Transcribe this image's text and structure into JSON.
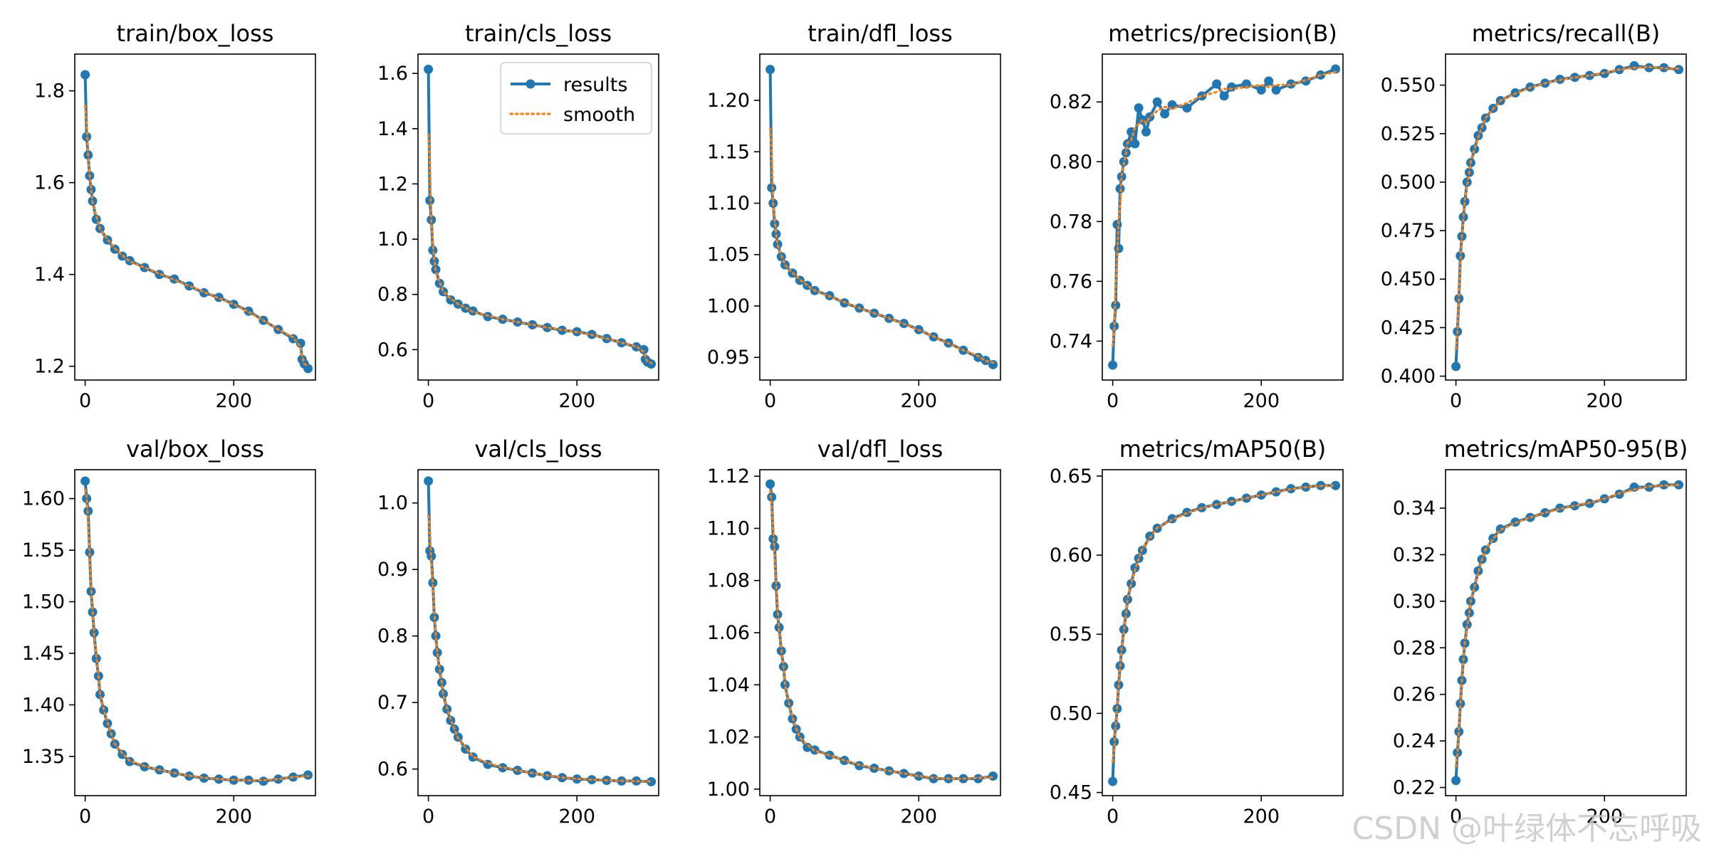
{
  "watermark": "CSDN @叶绿体不忘呼吸",
  "colors": {
    "results": "#1f77b4",
    "smooth": "#ff7f0e",
    "axes": "#000000",
    "background": "#ffffff"
  },
  "chart_data": [
    {
      "type": "line",
      "title": "train/box_loss",
      "grid": false,
      "xlim": [
        -14,
        310
      ],
      "ylim": [
        1.17,
        1.88
      ],
      "xticks": [
        0,
        200
      ],
      "xtick_labels": [
        "0",
        "200"
      ],
      "yticks": [
        1.2,
        1.4,
        1.6,
        1.8
      ],
      "ytick_labels": [
        "1.2",
        "1.4",
        "1.6",
        "1.8"
      ],
      "series": [
        {
          "name": "results",
          "x": [
            0,
            2,
            4,
            6,
            8,
            10,
            15,
            20,
            30,
            40,
            50,
            60,
            80,
            100,
            120,
            140,
            160,
            180,
            200,
            220,
            240,
            260,
            280,
            290,
            292,
            295,
            300
          ],
          "y": [
            1.835,
            1.7,
            1.66,
            1.615,
            1.585,
            1.56,
            1.52,
            1.5,
            1.475,
            1.455,
            1.44,
            1.43,
            1.415,
            1.4,
            1.39,
            1.375,
            1.36,
            1.35,
            1.335,
            1.32,
            1.3,
            1.28,
            1.26,
            1.25,
            1.215,
            1.205,
            1.195
          ]
        }
      ],
      "legend": false
    },
    {
      "type": "line",
      "title": "train/cls_loss",
      "grid": false,
      "xlim": [
        -14,
        310
      ],
      "ylim": [
        0.49,
        1.67
      ],
      "xticks": [
        0,
        200
      ],
      "xtick_labels": [
        "0",
        "200"
      ],
      "yticks": [
        0.6,
        0.8,
        1.0,
        1.2,
        1.4,
        1.6
      ],
      "ytick_labels": [
        "0.6",
        "0.8",
        "1.0",
        "1.2",
        "1.4",
        "1.6"
      ],
      "series": [
        {
          "name": "results",
          "x": [
            0,
            2,
            4,
            6,
            8,
            10,
            15,
            20,
            30,
            40,
            50,
            60,
            80,
            100,
            120,
            140,
            160,
            180,
            200,
            220,
            240,
            260,
            280,
            290,
            292,
            295,
            300
          ],
          "y": [
            1.615,
            1.14,
            1.07,
            0.96,
            0.92,
            0.89,
            0.84,
            0.81,
            0.78,
            0.765,
            0.75,
            0.74,
            0.72,
            0.71,
            0.7,
            0.69,
            0.68,
            0.67,
            0.665,
            0.655,
            0.64,
            0.625,
            0.61,
            0.6,
            0.565,
            0.555,
            0.548
          ]
        }
      ],
      "legend": true,
      "legend_position": "top-right",
      "legend_entries": [
        "results",
        "smooth"
      ]
    },
    {
      "type": "line",
      "title": "train/dfl_loss",
      "grid": false,
      "xlim": [
        -14,
        310
      ],
      "ylim": [
        0.928,
        1.245
      ],
      "xticks": [
        0,
        200
      ],
      "xtick_labels": [
        "0",
        "200"
      ],
      "yticks": [
        0.95,
        1.0,
        1.05,
        1.1,
        1.15,
        1.2
      ],
      "ytick_labels": [
        "0.95",
        "1.00",
        "1.05",
        "1.10",
        "1.15",
        "1.20"
      ],
      "series": [
        {
          "name": "results",
          "x": [
            0,
            2,
            4,
            6,
            8,
            10,
            15,
            20,
            30,
            40,
            50,
            60,
            80,
            100,
            120,
            140,
            160,
            180,
            200,
            220,
            240,
            260,
            280,
            290,
            300
          ],
          "y": [
            1.23,
            1.115,
            1.1,
            1.08,
            1.07,
            1.06,
            1.048,
            1.04,
            1.032,
            1.025,
            1.02,
            1.015,
            1.01,
            1.003,
            0.998,
            0.993,
            0.988,
            0.983,
            0.977,
            0.97,
            0.964,
            0.957,
            0.95,
            0.947,
            0.943
          ]
        }
      ],
      "legend": false
    },
    {
      "type": "line",
      "title": "metrics/precision(B)",
      "grid": false,
      "xlim": [
        -14,
        310
      ],
      "ylim": [
        0.727,
        0.836
      ],
      "xticks": [
        0,
        200
      ],
      "xtick_labels": [
        "0",
        "200"
      ],
      "yticks": [
        0.74,
        0.76,
        0.78,
        0.8,
        0.82
      ],
      "ytick_labels": [
        "0.74",
        "0.76",
        "0.78",
        "0.80",
        "0.82"
      ],
      "series": [
        {
          "name": "results",
          "x": [
            0,
            2,
            4,
            6,
            8,
            10,
            12,
            15,
            18,
            20,
            25,
            30,
            35,
            40,
            45,
            50,
            60,
            70,
            80,
            100,
            120,
            140,
            150,
            160,
            180,
            200,
            210,
            220,
            240,
            260,
            280,
            300
          ],
          "y": [
            0.732,
            0.745,
            0.752,
            0.779,
            0.771,
            0.791,
            0.795,
            0.8,
            0.803,
            0.806,
            0.81,
            0.806,
            0.818,
            0.814,
            0.81,
            0.815,
            0.82,
            0.816,
            0.819,
            0.818,
            0.822,
            0.826,
            0.822,
            0.825,
            0.826,
            0.824,
            0.827,
            0.824,
            0.826,
            0.827,
            0.829,
            0.831
          ]
        }
      ],
      "legend": false
    },
    {
      "type": "line",
      "title": "metrics/recall(B)",
      "grid": false,
      "xlim": [
        -14,
        310
      ],
      "ylim": [
        0.398,
        0.566
      ],
      "xticks": [
        0,
        200
      ],
      "xtick_labels": [
        "0",
        "200"
      ],
      "yticks": [
        0.4,
        0.425,
        0.45,
        0.475,
        0.5,
        0.525,
        0.55
      ],
      "ytick_labels": [
        "0.400",
        "0.425",
        "0.450",
        "0.475",
        "0.500",
        "0.525",
        "0.550"
      ],
      "series": [
        {
          "name": "results",
          "x": [
            0,
            2,
            4,
            6,
            8,
            10,
            12,
            15,
            18,
            20,
            25,
            30,
            35,
            40,
            50,
            60,
            80,
            100,
            120,
            140,
            160,
            180,
            200,
            220,
            240,
            260,
            280,
            300
          ],
          "y": [
            0.405,
            0.423,
            0.44,
            0.462,
            0.472,
            0.482,
            0.49,
            0.5,
            0.505,
            0.51,
            0.517,
            0.524,
            0.528,
            0.533,
            0.538,
            0.542,
            0.546,
            0.549,
            0.551,
            0.553,
            0.554,
            0.555,
            0.556,
            0.558,
            0.56,
            0.559,
            0.559,
            0.558
          ]
        }
      ],
      "legend": false
    },
    {
      "type": "line",
      "title": "val/box_loss",
      "grid": false,
      "xlim": [
        -14,
        310
      ],
      "ylim": [
        1.312,
        1.628
      ],
      "xticks": [
        0,
        200
      ],
      "xtick_labels": [
        "0",
        "200"
      ],
      "yticks": [
        1.35,
        1.4,
        1.45,
        1.5,
        1.55,
        1.6
      ],
      "ytick_labels": [
        "1.35",
        "1.40",
        "1.45",
        "1.50",
        "1.55",
        "1.60"
      ],
      "series": [
        {
          "name": "results",
          "x": [
            0,
            2,
            4,
            6,
            8,
            10,
            12,
            15,
            18,
            20,
            25,
            30,
            35,
            40,
            50,
            60,
            80,
            100,
            120,
            140,
            160,
            180,
            200,
            220,
            240,
            260,
            280,
            300
          ],
          "y": [
            1.617,
            1.6,
            1.588,
            1.548,
            1.51,
            1.49,
            1.47,
            1.445,
            1.428,
            1.41,
            1.395,
            1.382,
            1.372,
            1.362,
            1.352,
            1.345,
            1.34,
            1.337,
            1.334,
            1.331,
            1.329,
            1.328,
            1.327,
            1.327,
            1.326,
            1.328,
            1.33,
            1.332
          ]
        }
      ],
      "legend": false
    },
    {
      "type": "line",
      "title": "val/cls_loss",
      "grid": false,
      "xlim": [
        -14,
        310
      ],
      "ylim": [
        0.56,
        1.05
      ],
      "xticks": [
        0,
        200
      ],
      "xtick_labels": [
        "0",
        "200"
      ],
      "yticks": [
        0.6,
        0.7,
        0.8,
        0.9,
        1.0
      ],
      "ytick_labels": [
        "0.6",
        "0.7",
        "0.8",
        "0.9",
        "1.0"
      ],
      "series": [
        {
          "name": "results",
          "x": [
            0,
            2,
            4,
            6,
            8,
            10,
            12,
            15,
            18,
            20,
            25,
            30,
            35,
            40,
            50,
            60,
            80,
            100,
            120,
            140,
            160,
            180,
            200,
            220,
            240,
            260,
            280,
            300
          ],
          "y": [
            1.033,
            0.928,
            0.92,
            0.88,
            0.828,
            0.8,
            0.775,
            0.75,
            0.73,
            0.713,
            0.69,
            0.673,
            0.66,
            0.648,
            0.63,
            0.618,
            0.607,
            0.602,
            0.598,
            0.594,
            0.59,
            0.587,
            0.585,
            0.584,
            0.583,
            0.582,
            0.582,
            0.581
          ]
        }
      ],
      "legend": false
    },
    {
      "type": "line",
      "title": "val/dfl_loss",
      "grid": false,
      "xlim": [
        -14,
        310
      ],
      "ylim": [
        0.9975,
        1.1225
      ],
      "xticks": [
        0,
        200
      ],
      "xtick_labels": [
        "0",
        "200"
      ],
      "yticks": [
        1.0,
        1.02,
        1.04,
        1.06,
        1.08,
        1.1,
        1.12
      ],
      "ytick_labels": [
        "1.00",
        "1.02",
        "1.04",
        "1.06",
        "1.08",
        "1.10",
        "1.12"
      ],
      "series": [
        {
          "name": "results",
          "x": [
            0,
            2,
            4,
            6,
            8,
            10,
            12,
            15,
            18,
            20,
            25,
            30,
            35,
            40,
            50,
            60,
            80,
            100,
            120,
            140,
            160,
            180,
            200,
            220,
            240,
            260,
            280,
            300
          ],
          "y": [
            1.117,
            1.112,
            1.096,
            1.093,
            1.078,
            1.067,
            1.062,
            1.053,
            1.047,
            1.04,
            1.033,
            1.027,
            1.023,
            1.02,
            1.016,
            1.015,
            1.013,
            1.011,
            1.009,
            1.008,
            1.007,
            1.006,
            1.005,
            1.004,
            1.004,
            1.004,
            1.004,
            1.005
          ]
        }
      ],
      "legend": false
    },
    {
      "type": "line",
      "title": "metrics/mAP50(B)",
      "grid": false,
      "xlim": [
        -14,
        310
      ],
      "ylim": [
        0.448,
        0.654
      ],
      "xticks": [
        0,
        200
      ],
      "xtick_labels": [
        "0",
        "200"
      ],
      "yticks": [
        0.45,
        0.5,
        0.55,
        0.6,
        0.65
      ],
      "ytick_labels": [
        "0.45",
        "0.50",
        "0.55",
        "0.60",
        "0.65"
      ],
      "series": [
        {
          "name": "results",
          "x": [
            0,
            2,
            4,
            6,
            8,
            10,
            12,
            15,
            18,
            20,
            25,
            30,
            35,
            40,
            50,
            60,
            80,
            100,
            120,
            140,
            160,
            180,
            200,
            220,
            240,
            260,
            280,
            300
          ],
          "y": [
            0.457,
            0.482,
            0.492,
            0.503,
            0.518,
            0.53,
            0.54,
            0.553,
            0.563,
            0.572,
            0.582,
            0.592,
            0.598,
            0.603,
            0.612,
            0.617,
            0.623,
            0.627,
            0.63,
            0.632,
            0.634,
            0.636,
            0.638,
            0.64,
            0.642,
            0.643,
            0.644,
            0.644
          ]
        }
      ],
      "legend": false
    },
    {
      "type": "line",
      "title": "metrics/mAP50-95(B)",
      "grid": false,
      "xlim": [
        -14,
        310
      ],
      "ylim": [
        0.2165,
        0.3565
      ],
      "xticks": [
        0,
        200
      ],
      "xtick_labels": [
        "0",
        "200"
      ],
      "yticks": [
        0.22,
        0.24,
        0.26,
        0.28,
        0.3,
        0.32,
        0.34
      ],
      "ytick_labels": [
        "0.22",
        "0.24",
        "0.26",
        "0.28",
        "0.30",
        "0.32",
        "0.34"
      ],
      "series": [
        {
          "name": "results",
          "x": [
            0,
            2,
            4,
            6,
            8,
            10,
            12,
            15,
            18,
            20,
            25,
            30,
            35,
            40,
            50,
            60,
            80,
            100,
            120,
            140,
            160,
            180,
            200,
            220,
            240,
            260,
            280,
            300
          ],
          "y": [
            0.223,
            0.235,
            0.244,
            0.256,
            0.266,
            0.275,
            0.282,
            0.29,
            0.295,
            0.3,
            0.306,
            0.313,
            0.318,
            0.322,
            0.327,
            0.331,
            0.334,
            0.336,
            0.338,
            0.34,
            0.341,
            0.342,
            0.344,
            0.346,
            0.349,
            0.349,
            0.35,
            0.35
          ]
        }
      ],
      "legend": false
    }
  ]
}
